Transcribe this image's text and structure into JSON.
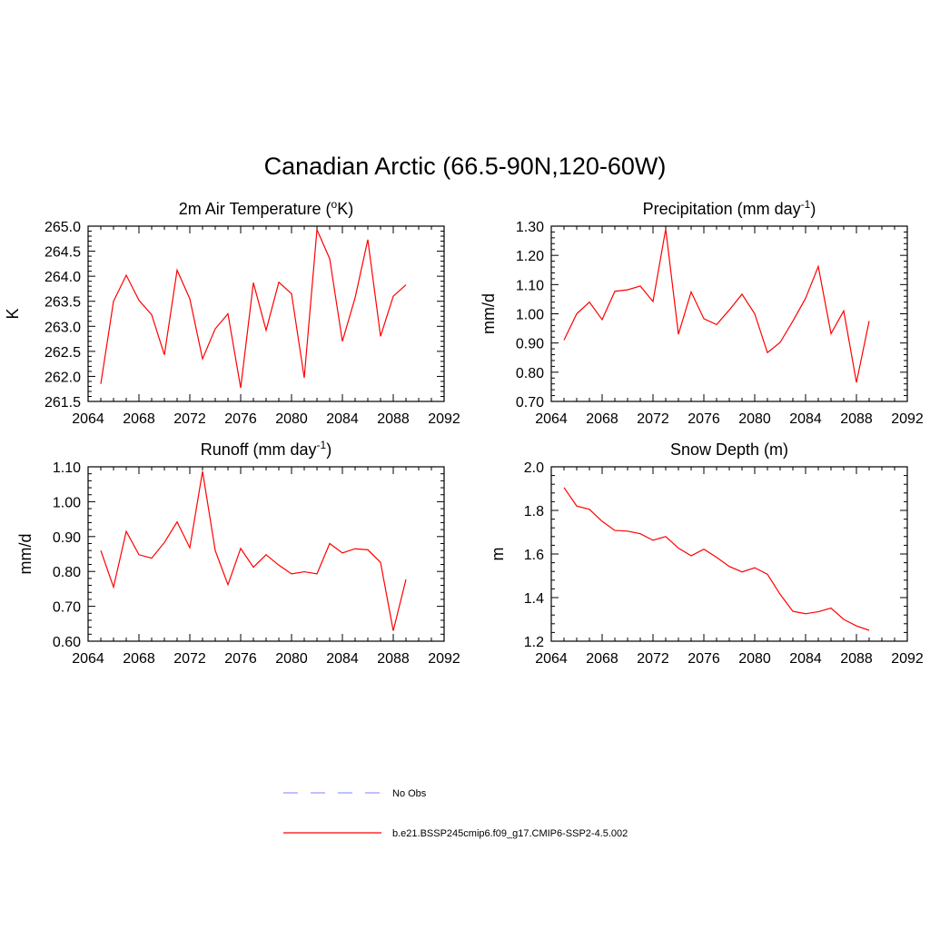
{
  "title": "Canadian Arctic (66.5-90N,120-60W)",
  "colors": {
    "line": "#ff0000",
    "obs": "#9999ff",
    "axis": "#000000"
  },
  "legend": {
    "items": [
      {
        "label": "No Obs",
        "style": "dashed",
        "color": "#9999ff"
      },
      {
        "label": "b.e21.BSSP245cmip6.f09_g17.CMIP6-SSP2-4.5.002",
        "style": "solid",
        "color": "#ff0000"
      }
    ]
  },
  "chart_data": [
    {
      "type": "line",
      "title": "2m Air Temperature (oK)",
      "title_parts": {
        "pre": "2m Air Temperature (",
        "sup": "o",
        "post": "K)"
      },
      "xlabel": "",
      "ylabel": "K",
      "xlim": [
        2064,
        2092
      ],
      "ylim": [
        261.5,
        265.0
      ],
      "xticks": [
        "2064",
        "2068",
        "2072",
        "2076",
        "2080",
        "2084",
        "2088",
        "2092"
      ],
      "yticks": [
        "261.5",
        "262.0",
        "262.5",
        "263.0",
        "263.5",
        "264.0",
        "264.5",
        "265.0"
      ],
      "x": [
        2065,
        2066,
        2067,
        2068,
        2069,
        2070,
        2071,
        2072,
        2073,
        2074,
        2075,
        2076,
        2077,
        2078,
        2079,
        2080,
        2081,
        2082,
        2083,
        2084,
        2085,
        2086,
        2087,
        2088,
        2089
      ],
      "series": [
        {
          "values": [
            261.85,
            263.5,
            264.02,
            263.52,
            263.23,
            262.43,
            264.12,
            263.55,
            262.35,
            262.95,
            263.25,
            261.77,
            263.87,
            262.92,
            263.88,
            263.65,
            261.97,
            264.93,
            264.35,
            262.7,
            263.57,
            264.73,
            262.8,
            263.6,
            263.83
          ]
        }
      ]
    },
    {
      "type": "line",
      "title": "Precipitation (mm day-1)",
      "title_parts": {
        "pre": "Precipitation (mm day",
        "sup": "-1",
        "post": ")"
      },
      "xlabel": "",
      "ylabel": "mm/d",
      "xlim": [
        2064,
        2092
      ],
      "ylim": [
        0.7,
        1.3
      ],
      "xticks": [
        "2064",
        "2068",
        "2072",
        "2076",
        "2080",
        "2084",
        "2088",
        "2092"
      ],
      "yticks": [
        "0.70",
        "0.80",
        "0.90",
        "1.00",
        "1.10",
        "1.20",
        "1.30"
      ],
      "x": [
        2065,
        2066,
        2067,
        2068,
        2069,
        2070,
        2071,
        2072,
        2073,
        2074,
        2075,
        2076,
        2077,
        2078,
        2079,
        2080,
        2081,
        2082,
        2083,
        2084,
        2085,
        2086,
        2087,
        2088,
        2089
      ],
      "series": [
        {
          "values": [
            0.91,
            1.0,
            1.04,
            0.98,
            1.077,
            1.082,
            1.095,
            1.042,
            1.29,
            0.93,
            1.075,
            0.983,
            0.963,
            1.013,
            1.067,
            1.0,
            0.867,
            0.902,
            0.975,
            1.053,
            1.162,
            0.932,
            1.01,
            0.765,
            0.975
          ]
        }
      ]
    },
    {
      "type": "line",
      "title": "Runoff (mm day-1)",
      "title_parts": {
        "pre": "Runoff (mm day",
        "sup": "-1",
        "post": ")"
      },
      "xlabel": "",
      "ylabel": "mm/d",
      "xlim": [
        2064,
        2092
      ],
      "ylim": [
        0.6,
        1.1
      ],
      "xticks": [
        "2064",
        "2068",
        "2072",
        "2076",
        "2080",
        "2084",
        "2088",
        "2092"
      ],
      "yticks": [
        "0.60",
        "0.70",
        "0.80",
        "0.90",
        "1.00",
        "1.10"
      ],
      "x": [
        2065,
        2066,
        2067,
        2068,
        2069,
        2070,
        2071,
        2072,
        2073,
        2074,
        2075,
        2076,
        2077,
        2078,
        2079,
        2080,
        2081,
        2082,
        2083,
        2084,
        2085,
        2086,
        2087,
        2088,
        2089
      ],
      "series": [
        {
          "values": [
            0.86,
            0.755,
            0.915,
            0.848,
            0.838,
            0.883,
            0.942,
            0.868,
            1.087,
            0.86,
            0.762,
            0.866,
            0.812,
            0.848,
            0.818,
            0.793,
            0.799,
            0.793,
            0.88,
            0.853,
            0.865,
            0.862,
            0.826,
            0.63,
            0.777
          ]
        }
      ]
    },
    {
      "type": "line",
      "title": "Snow Depth (m)",
      "title_parts": {
        "pre": "Snow Depth (m)",
        "sup": "",
        "post": ""
      },
      "xlabel": "",
      "ylabel": "m",
      "xlim": [
        2064,
        2092
      ],
      "ylim": [
        1.2,
        2.0
      ],
      "xticks": [
        "2064",
        "2068",
        "2072",
        "2076",
        "2080",
        "2084",
        "2088",
        "2092"
      ],
      "yticks": [
        "1.2",
        "1.4",
        "1.6",
        "1.8",
        "2.0"
      ],
      "x": [
        2065,
        2066,
        2067,
        2068,
        2069,
        2070,
        2071,
        2072,
        2073,
        2074,
        2075,
        2076,
        2077,
        2078,
        2079,
        2080,
        2081,
        2082,
        2083,
        2084,
        2085,
        2086,
        2087,
        2088,
        2089
      ],
      "series": [
        {
          "values": [
            1.905,
            1.82,
            1.805,
            1.75,
            1.708,
            1.705,
            1.693,
            1.663,
            1.68,
            1.627,
            1.592,
            1.622,
            1.585,
            1.543,
            1.518,
            1.537,
            1.507,
            1.415,
            1.337,
            1.326,
            1.335,
            1.352,
            1.3,
            1.27,
            1.25
          ]
        }
      ]
    }
  ]
}
